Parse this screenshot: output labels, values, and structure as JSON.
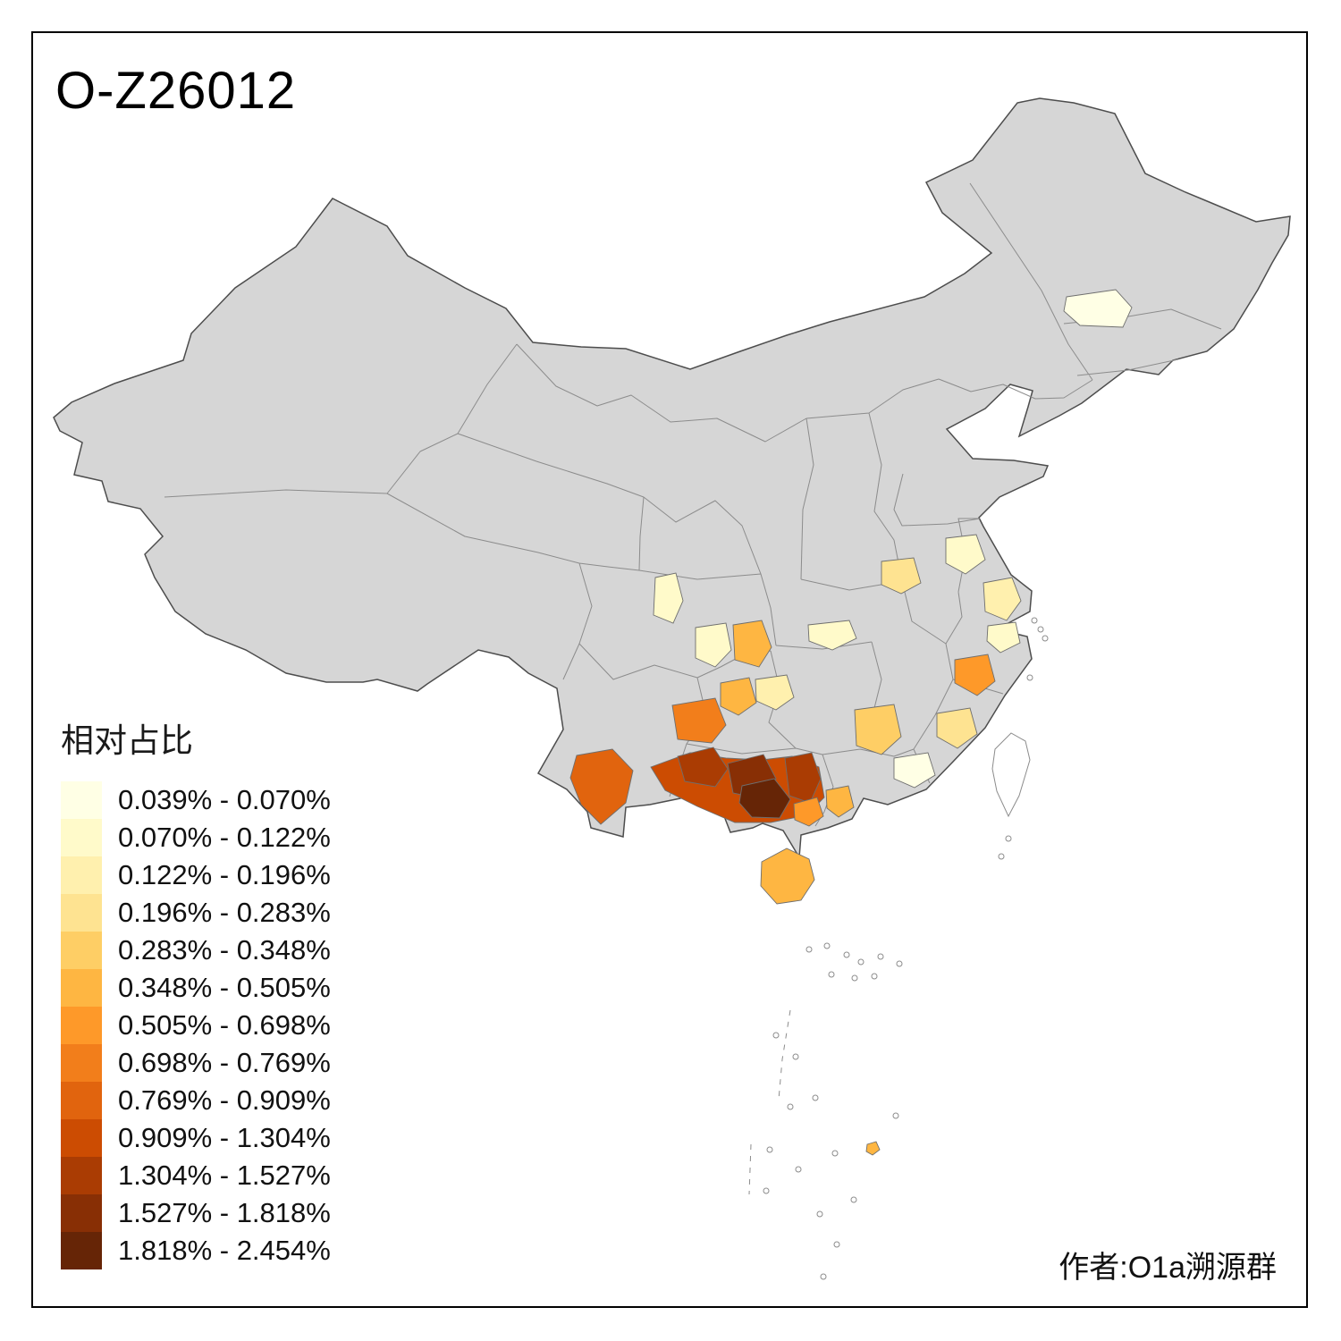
{
  "title": "O-Z26012",
  "author_credit": "作者:O1a溯源群",
  "legend": {
    "title": "相对占比",
    "classes": [
      {
        "label": "0.039% - 0.070%",
        "color": "#FFFFE5"
      },
      {
        "label": "0.070% - 0.122%",
        "color": "#FFFACA"
      },
      {
        "label": "0.122% - 0.196%",
        "color": "#FFF0AE"
      },
      {
        "label": "0.196% - 0.283%",
        "color": "#FEE391"
      },
      {
        "label": "0.283% - 0.348%",
        "color": "#FECE65"
      },
      {
        "label": "0.348% - 0.505%",
        "color": "#FEB642"
      },
      {
        "label": "0.505% - 0.698%",
        "color": "#FE9929"
      },
      {
        "label": "0.698% - 0.769%",
        "color": "#F27E1B"
      },
      {
        "label": "0.769% - 0.909%",
        "color": "#E1640E"
      },
      {
        "label": "0.909% - 1.304%",
        "color": "#CC4C02"
      },
      {
        "label": "1.304% - 1.527%",
        "color": "#AA3C03"
      },
      {
        "label": "1.527% - 1.818%",
        "color": "#882F05"
      },
      {
        "label": "1.818% - 2.454%",
        "color": "#662506"
      }
    ]
  },
  "map": {
    "land_fill": "#D6D6D6",
    "outline_color": "#4D4D4D",
    "province_border_color": "#8C8C8C",
    "region_border_color": "#6E6E6E",
    "island_fill": "#FFFFFF",
    "regions": [
      {
        "id": "heilongjiang-harbin",
        "class": 1
      },
      {
        "id": "jiangsu-north",
        "class": 2
      },
      {
        "id": "anhui-central",
        "class": 4
      },
      {
        "id": "sichuan-east",
        "class": 2
      },
      {
        "id": "sichuan-south-pale",
        "class": 2
      },
      {
        "id": "chongqing-south",
        "class": 6
      },
      {
        "id": "hubei-south",
        "class": 2
      },
      {
        "id": "zhejiang-coast",
        "class": 3
      },
      {
        "id": "zhejiang-south",
        "class": 2
      },
      {
        "id": "fujian-north",
        "class": 7
      },
      {
        "id": "jiangxi-south",
        "class": 4
      },
      {
        "id": "guangdong-north",
        "class": 5
      },
      {
        "id": "guangdong-east-pale",
        "class": 1
      },
      {
        "id": "hunan-southwest",
        "class": 8
      },
      {
        "id": "hunan-south",
        "class": 6
      },
      {
        "id": "guizhou-mid",
        "class": 3
      },
      {
        "id": "yunnan-south",
        "class": 9
      },
      {
        "id": "guangxi-backdrop",
        "class": 10
      },
      {
        "id": "guangxi-northwest",
        "class": 11
      },
      {
        "id": "guangxi-north-dark",
        "class": 12
      },
      {
        "id": "guangxi-central-dark",
        "class": 13
      },
      {
        "id": "guangxi-east",
        "class": 11
      },
      {
        "id": "guangxi-southeast",
        "class": 7
      },
      {
        "id": "guangdong-west",
        "class": 6
      },
      {
        "id": "hainan",
        "class": 6
      },
      {
        "id": "scs-island",
        "class": 6
      }
    ]
  }
}
